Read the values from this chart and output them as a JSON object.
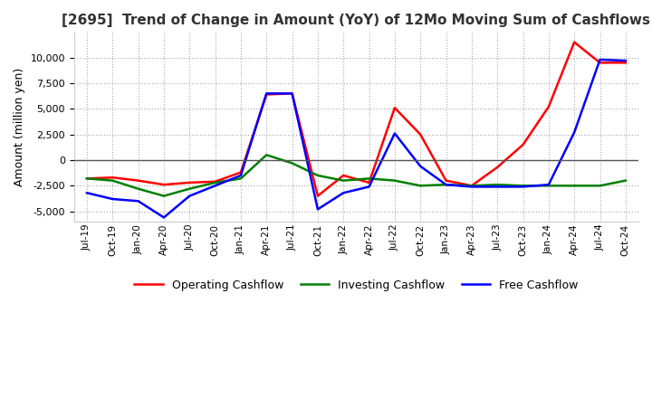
{
  "title": "[2695]  Trend of Change in Amount (YoY) of 12Mo Moving Sum of Cashflows",
  "ylabel": "Amount (million yen)",
  "x_labels": [
    "Jul-19",
    "Oct-19",
    "Jan-20",
    "Apr-20",
    "Jul-20",
    "Oct-20",
    "Jan-21",
    "Apr-21",
    "Jul-21",
    "Oct-21",
    "Jan-22",
    "Apr-22",
    "Jul-22",
    "Oct-22",
    "Jan-23",
    "Apr-23",
    "Jul-23",
    "Oct-23",
    "Jan-24",
    "Apr-24",
    "Jul-24",
    "Oct-24"
  ],
  "operating_cashflow": [
    -1800,
    -1700,
    -2000,
    -2400,
    -2200,
    -2100,
    -1200,
    6400,
    6500,
    -3500,
    -1500,
    -2200,
    5100,
    2500,
    -2000,
    -2500,
    -700,
    1500,
    5200,
    11500,
    9500,
    9500
  ],
  "investing_cashflow": [
    -1800,
    -2000,
    -2800,
    -3500,
    -2800,
    -2200,
    -1800,
    500,
    -300,
    -1500,
    -2000,
    -1800,
    -2000,
    -2500,
    -2400,
    -2500,
    -2400,
    -2500,
    -2500,
    -2500,
    -2500,
    -2000
  ],
  "free_cashflow": [
    -3200,
    -3800,
    -4000,
    -5600,
    -3500,
    -2500,
    -1500,
    6500,
    6500,
    -4800,
    -3200,
    -2600,
    2600,
    -600,
    -2400,
    -2600,
    -2600,
    -2600,
    -2400,
    2700,
    9800,
    9700
  ],
  "operating_color": "#ff0000",
  "investing_color": "#008000",
  "free_color": "#0000ff",
  "ylim": [
    -6000,
    12500
  ],
  "yticks": [
    -5000,
    -2500,
    0,
    2500,
    5000,
    7500,
    10000
  ],
  "grid_color": "#aaaaaa",
  "bg_color": "#ffffff",
  "title_color": "#333333",
  "legend_labels": [
    "Operating Cashflow",
    "Investing Cashflow",
    "Free Cashflow"
  ]
}
